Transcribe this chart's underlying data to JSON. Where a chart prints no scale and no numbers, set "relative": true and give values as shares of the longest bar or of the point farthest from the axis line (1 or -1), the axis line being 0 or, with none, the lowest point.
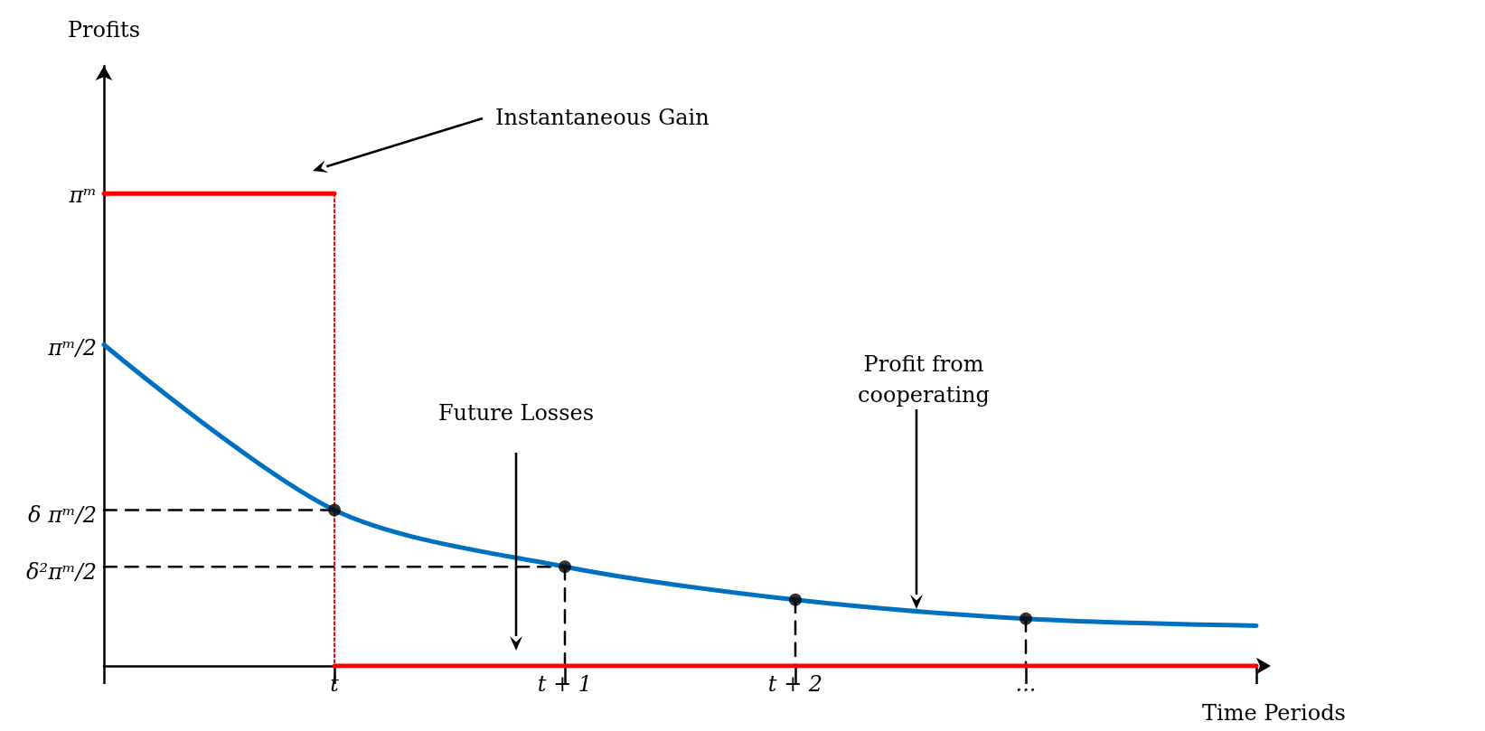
{
  "chart_data": {
    "type": "line",
    "xlabel": "Time Periods",
    "relative": true,
    "categories": [
      null,
      "t",
      "t + 1",
      "t + 2",
      "...",
      null
    ],
    "series": [
      {
        "color": "#ff0000",
        "values": [
          1,
          1,
          null,
          null,
          null,
          null
        ]
      },
      {
        "color": "#ff0000",
        "x": [
          "t",
          "t"
        ],
        "values": [
          1,
          0
        ],
        "line_style": "dotted"
      },
      {
        "color": "#ff0000",
        "values": [
          null,
          0,
          0,
          0,
          0,
          0
        ]
      },
      {
        "color": "#000000",
        "values": [
          0.33,
          0.33,
          null,
          null,
          null,
          null
        ],
        "line_style": "dashed"
      },
      {
        "color": "#000000",
        "values": [
          0.21,
          0.21,
          0.21,
          null,
          null,
          null
        ],
        "line_style": "dashed"
      },
      {
        "color": "#000000",
        "x": [
          "t + 1",
          "t + 1"
        ],
        "values": [
          0.21,
          0
        ],
        "line_style": "dashed"
      },
      {
        "color": "#000000",
        "x": [
          "t + 2",
          "t + 2"
        ],
        "values": [
          0.14,
          0
        ],
        "line_style": "dashed"
      },
      {
        "color": "#000000",
        "x": [
          "...",
          "..."
        ],
        "values": [
          0.1,
          0
        ],
        "line_style": "dashed"
      },
      {
        "color": "#0070c0",
        "values": [
          0.68,
          0.33,
          0.21,
          0.14,
          0.1,
          0.085
        ]
      },
      {
        "type": "scatter",
        "marker": "circle",
        "color": "#000000",
        "x": [
          "t",
          "t + 1",
          "t + 2",
          "..."
        ],
        "values": [
          0.33,
          0.21,
          0.14,
          0.1
        ]
      }
    ],
    "annotations": [
      "Instantaneous Gain",
      "Future Losses",
      "Profit from cooperating",
      "πᵐ",
      "πᵐ/2",
      "δ πᵐ/2",
      "δ²πᵐ/2",
      "Profits"
    ]
  }
}
